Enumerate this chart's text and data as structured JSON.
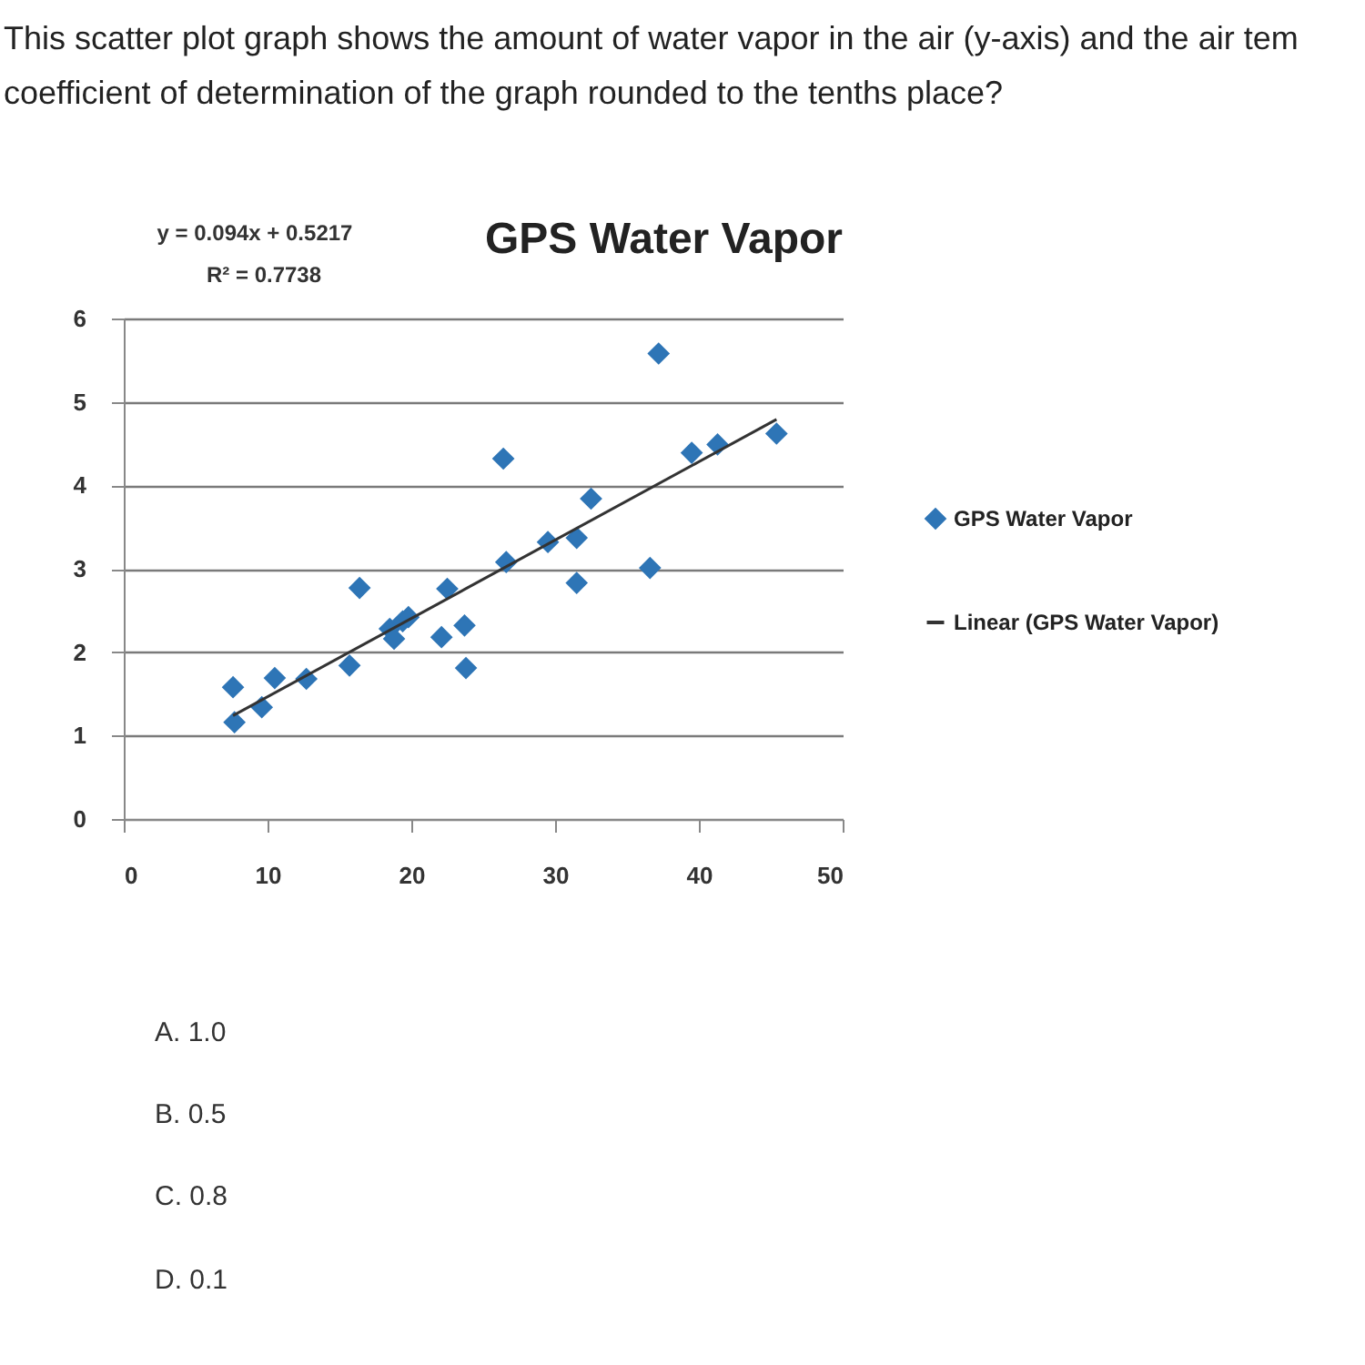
{
  "chart_data": {
    "type": "scatter",
    "title": "GPS Water Vapor",
    "annotations": [
      "y = 0.094x + 0.5217",
      "R² = 0.7738",
      "This scatter plot graph shows the amount of water vapor in the air (y-axis) and the air tem",
      "coefficient of determination of the graph rounded to the tenths place?",
      "A.  1.0",
      "B.  0.5",
      "C.  0.8",
      "D.  0.1"
    ],
    "xlim": [
      0,
      50
    ],
    "xticks": [
      0,
      10,
      20,
      30,
      40,
      50
    ],
    "ylim": [
      0,
      6
    ],
    "yticks": [
      0,
      1,
      2,
      3,
      4,
      5,
      6
    ],
    "grid": "y",
    "legend": "right",
    "series": [
      {
        "name": "GPS Water Vapor",
        "color": "#2e75b6",
        "marker": "diamond",
        "x": [
          7.6,
          7.7,
          9.6,
          10.5,
          12.7,
          15.7,
          16.4,
          18.5,
          18.8,
          19.4,
          19.8,
          22.1,
          22.5,
          23.7,
          23.8,
          26.4,
          26.6,
          29.5,
          31.5,
          31.5,
          32.5,
          36.6,
          37.2,
          39.5,
          41.3,
          45.4
        ],
        "values": [
          1.58,
          1.16,
          1.34,
          1.69,
          1.68,
          1.84,
          2.77,
          2.28,
          2.16,
          2.37,
          2.42,
          2.18,
          2.76,
          2.32,
          1.81,
          4.32,
          3.08,
          3.32,
          3.37,
          2.83,
          3.84,
          3.01,
          5.58,
          4.39,
          4.49,
          4.62
        ]
      },
      {
        "name": "Linear (GPS Water Vapor)",
        "type": "line",
        "color": "#333333",
        "x": [
          7.6,
          45.4
        ],
        "values": [
          1.24,
          4.79
        ]
      }
    ]
  }
}
